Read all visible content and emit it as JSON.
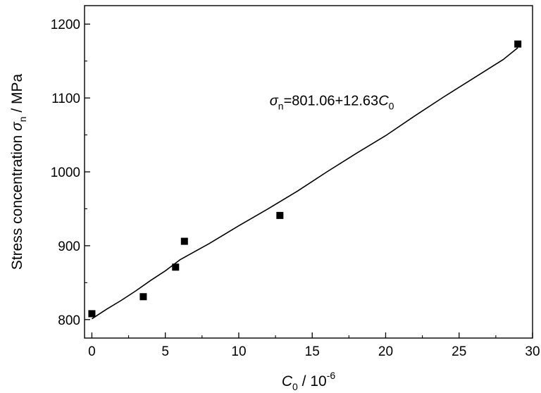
{
  "chart_data": {
    "type": "scatter",
    "title": "",
    "xlabel": {
      "symbol": "C",
      "subscript": "0",
      "rest": " / 10",
      "superscript": "-6"
    },
    "ylabel": {
      "text": "Stress concentration ",
      "symbol": "σ",
      "subscript": "n",
      "rest": " / MPa"
    },
    "xlim": [
      -0.5,
      30
    ],
    "ylim": [
      775,
      1225
    ],
    "xticks": [
      "0",
      "5",
      "10",
      "15",
      "20",
      "25",
      "30"
    ],
    "xtick_values": [
      0,
      5,
      10,
      15,
      20,
      25,
      30
    ],
    "yticks": [
      "800",
      "900",
      "1000",
      "1100",
      "1200"
    ],
    "ytick_values": [
      800,
      900,
      1000,
      1100,
      1200
    ],
    "grid": false,
    "series": [
      {
        "marker": "square",
        "color": "#000000",
        "x": [
          0.0,
          3.5,
          5.7,
          6.3,
          12.8,
          29.0
        ],
        "y": [
          808,
          831,
          871,
          906,
          941,
          1173
        ]
      }
    ],
    "fit_line": {
      "x": [
        0.0,
        1.0,
        2.0,
        3.0,
        4.0,
        5.0,
        6.0,
        8.0,
        10.0,
        12.0,
        14.0,
        16.0,
        18.0,
        20.0,
        22.0,
        24.0,
        26.0,
        28.0,
        29.0
      ],
      "y": [
        801,
        814,
        826,
        839,
        853,
        866,
        881,
        903,
        927,
        950,
        974,
        1000,
        1025,
        1049,
        1076,
        1102,
        1127,
        1152,
        1168
      ],
      "intercept": 801.06,
      "slope": 12.63
    },
    "annotation": {
      "symbol": "σ",
      "subscript": "n",
      "equation": "=801.06+12.63",
      "var_symbol": "C",
      "var_subscript": "0",
      "at": [
        12.1,
        1090
      ]
    }
  }
}
